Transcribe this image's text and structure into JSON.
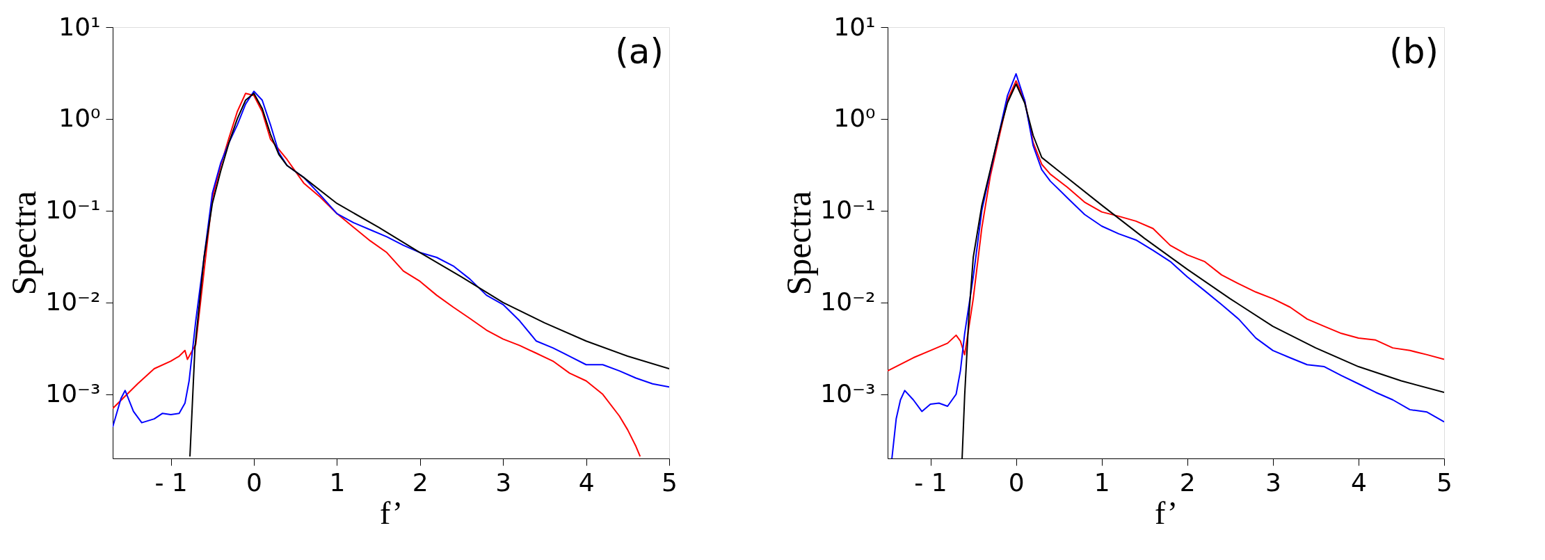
{
  "chart_data": [
    {
      "type": "line",
      "xlabel": "f’",
      "ylabel": "Spectra",
      "annotations": [
        "(a)"
      ],
      "log": "y",
      "grid": false,
      "legend": false,
      "xlim": [
        -1.7,
        5
      ],
      "ylim": [
        0.0002,
        10
      ],
      "xticks": [
        {
          "value": -1,
          "label": "- 1"
        },
        0,
        1,
        2,
        3,
        4,
        5
      ],
      "yticks": [
        {
          "value": 10,
          "label": "10¹"
        },
        {
          "value": 1,
          "label": "10⁰"
        },
        {
          "value": 0.1,
          "label": "10⁻¹"
        },
        {
          "value": 0.01,
          "label": "10⁻²"
        },
        {
          "value": 0.001,
          "label": "10⁻³"
        }
      ],
      "series": [
        {
          "color": "#ff0000",
          "x": [
            -1.7,
            -1.4,
            -1.2,
            -1.0,
            -0.9,
            -0.83,
            -0.8,
            -0.7,
            -0.6,
            -0.5,
            -0.4,
            -0.3,
            -0.2,
            -0.1,
            0,
            0.1,
            0.2,
            0.4,
            0.6,
            0.8,
            1.0,
            1.2,
            1.4,
            1.6,
            1.8,
            2.0,
            2.2,
            2.4,
            2.6,
            2.8,
            3.0,
            3.2,
            3.4,
            3.6,
            3.8,
            4.0,
            4.2,
            4.4,
            4.5,
            4.6,
            4.65
          ],
          "values": [
            0.0007,
            0.0013,
            0.0019,
            0.0023,
            0.0026,
            0.003,
            0.0024,
            0.0035,
            0.022,
            0.138,
            0.31,
            0.62,
            1.2,
            1.9,
            1.8,
            1.2,
            0.6,
            0.36,
            0.2,
            0.14,
            0.093,
            0.066,
            0.047,
            0.035,
            0.022,
            0.017,
            0.012,
            0.0089,
            0.0067,
            0.005,
            0.004,
            0.0034,
            0.0028,
            0.0023,
            0.0017,
            0.0014,
            0.001,
            0.00058,
            0.00041,
            0.00027,
            0.00021
          ]
        },
        {
          "color": "#0000ff",
          "x": [
            -1.7,
            -1.6,
            -1.55,
            -1.45,
            -1.35,
            -1.2,
            -1.1,
            -1.0,
            -0.9,
            -0.83,
            -0.78,
            -0.7,
            -0.6,
            -0.5,
            -0.4,
            -0.3,
            -0.2,
            -0.1,
            0,
            0.1,
            0.2,
            0.3,
            0.4,
            0.6,
            0.8,
            1.0,
            1.2,
            1.4,
            1.6,
            1.8,
            2.0,
            2.2,
            2.4,
            2.6,
            2.8,
            3.0,
            3.2,
            3.4,
            3.6,
            3.8,
            4.0,
            4.2,
            4.4,
            4.6,
            4.8,
            5.0
          ],
          "values": [
            0.00044,
            0.0009,
            0.0011,
            0.00065,
            0.00049,
            0.00054,
            0.00062,
            0.0006,
            0.00062,
            0.0008,
            0.0014,
            0.0063,
            0.031,
            0.155,
            0.33,
            0.55,
            0.86,
            1.45,
            2.0,
            1.6,
            0.86,
            0.43,
            0.31,
            0.23,
            0.148,
            0.093,
            0.074,
            0.062,
            0.052,
            0.042,
            0.035,
            0.031,
            0.025,
            0.018,
            0.012,
            0.0095,
            0.0063,
            0.0038,
            0.0032,
            0.0026,
            0.0021,
            0.0021,
            0.0018,
            0.0015,
            0.0013,
            0.0012
          ]
        },
        {
          "color": "#000000",
          "x": [
            -0.77,
            -0.71,
            -0.65,
            -0.6,
            -0.5,
            -0.4,
            -0.3,
            -0.2,
            -0.1,
            0,
            0.1,
            0.2,
            0.3,
            0.4,
            0.6,
            1.0,
            1.5,
            2.0,
            2.5,
            3.0,
            3.5,
            4.0,
            4.5,
            5.0
          ],
          "values": [
            0.00021,
            0.0032,
            0.011,
            0.031,
            0.12,
            0.27,
            0.55,
            1.0,
            1.6,
            1.9,
            1.3,
            0.68,
            0.41,
            0.31,
            0.23,
            0.12,
            0.066,
            0.035,
            0.019,
            0.01,
            0.006,
            0.0038,
            0.0026,
            0.0019
          ]
        }
      ]
    },
    {
      "type": "line",
      "xlabel": "f’",
      "ylabel": "Spectra",
      "annotations": [
        "(b)"
      ],
      "log": "y",
      "grid": false,
      "legend": false,
      "xlim": [
        -1.5,
        5
      ],
      "ylim": [
        0.0002,
        10
      ],
      "xticks": [
        {
          "value": -1,
          "label": "- 1"
        },
        0,
        1,
        2,
        3,
        4,
        5
      ],
      "yticks": [
        {
          "value": 10,
          "label": "10¹"
        },
        {
          "value": 1,
          "label": "10⁰"
        },
        {
          "value": 0.1,
          "label": "10⁻¹"
        },
        {
          "value": 0.01,
          "label": "10⁻²"
        },
        {
          "value": 0.001,
          "label": "10⁻³"
        }
      ],
      "series": [
        {
          "color": "#ff0000",
          "x": [
            -1.5,
            -1.2,
            -1.0,
            -0.8,
            -0.7,
            -0.65,
            -0.6,
            -0.5,
            -0.4,
            -0.3,
            -0.2,
            -0.1,
            0,
            0.1,
            0.2,
            0.3,
            0.4,
            0.6,
            0.8,
            1.0,
            1.2,
            1.4,
            1.6,
            1.8,
            2.0,
            2.2,
            2.4,
            2.6,
            2.8,
            3.0,
            3.2,
            3.4,
            3.6,
            3.8,
            4.0,
            4.2,
            4.4,
            4.6,
            4.8,
            5.0
          ],
          "values": [
            0.0018,
            0.0025,
            0.003,
            0.0036,
            0.0044,
            0.0038,
            0.0027,
            0.011,
            0.065,
            0.24,
            0.62,
            1.6,
            2.6,
            1.6,
            0.55,
            0.32,
            0.25,
            0.18,
            0.124,
            0.097,
            0.087,
            0.077,
            0.064,
            0.042,
            0.033,
            0.028,
            0.02,
            0.016,
            0.013,
            0.011,
            0.0089,
            0.0066,
            0.0055,
            0.0046,
            0.0041,
            0.0039,
            0.0032,
            0.003,
            0.0027,
            0.0024
          ]
        },
        {
          "color": "#0000ff",
          "x": [
            -1.45,
            -1.4,
            -1.35,
            -1.3,
            -1.2,
            -1.1,
            -1.0,
            -0.9,
            -0.8,
            -0.7,
            -0.65,
            -0.6,
            -0.5,
            -0.4,
            -0.3,
            -0.2,
            -0.1,
            0,
            0.1,
            0.2,
            0.3,
            0.4,
            0.6,
            0.8,
            1.0,
            1.2,
            1.4,
            1.6,
            1.8,
            2.0,
            2.2,
            2.4,
            2.6,
            2.8,
            3.0,
            3.2,
            3.4,
            3.6,
            3.8,
            4.0,
            4.2,
            4.4,
            4.6,
            4.8,
            5.0
          ],
          "values": [
            0.0002,
            0.00054,
            0.00087,
            0.0011,
            0.00087,
            0.00065,
            0.00078,
            0.0008,
            0.00074,
            0.001,
            0.0018,
            0.0046,
            0.019,
            0.1,
            0.27,
            0.69,
            1.8,
            3.1,
            1.6,
            0.51,
            0.28,
            0.21,
            0.138,
            0.091,
            0.068,
            0.056,
            0.048,
            0.037,
            0.028,
            0.019,
            0.0135,
            0.0095,
            0.0066,
            0.0041,
            0.003,
            0.0025,
            0.0021,
            0.002,
            0.0016,
            0.0013,
            0.00105,
            0.00087,
            0.00068,
            0.00064,
            0.0005
          ]
        },
        {
          "color": "#000000",
          "x": [
            -0.63,
            -0.6,
            -0.55,
            -0.5,
            -0.4,
            -0.3,
            -0.2,
            -0.1,
            0,
            0.1,
            0.2,
            0.3,
            0.5,
            1.0,
            1.5,
            2.0,
            2.5,
            3.0,
            3.5,
            4.0,
            4.5,
            5.0
          ],
          "values": [
            0.0002,
            0.00098,
            0.0074,
            0.031,
            0.114,
            0.28,
            0.69,
            1.5,
            2.4,
            1.5,
            0.66,
            0.38,
            0.27,
            0.115,
            0.05,
            0.023,
            0.011,
            0.0055,
            0.0032,
            0.002,
            0.0014,
            0.00105
          ]
        }
      ]
    }
  ]
}
